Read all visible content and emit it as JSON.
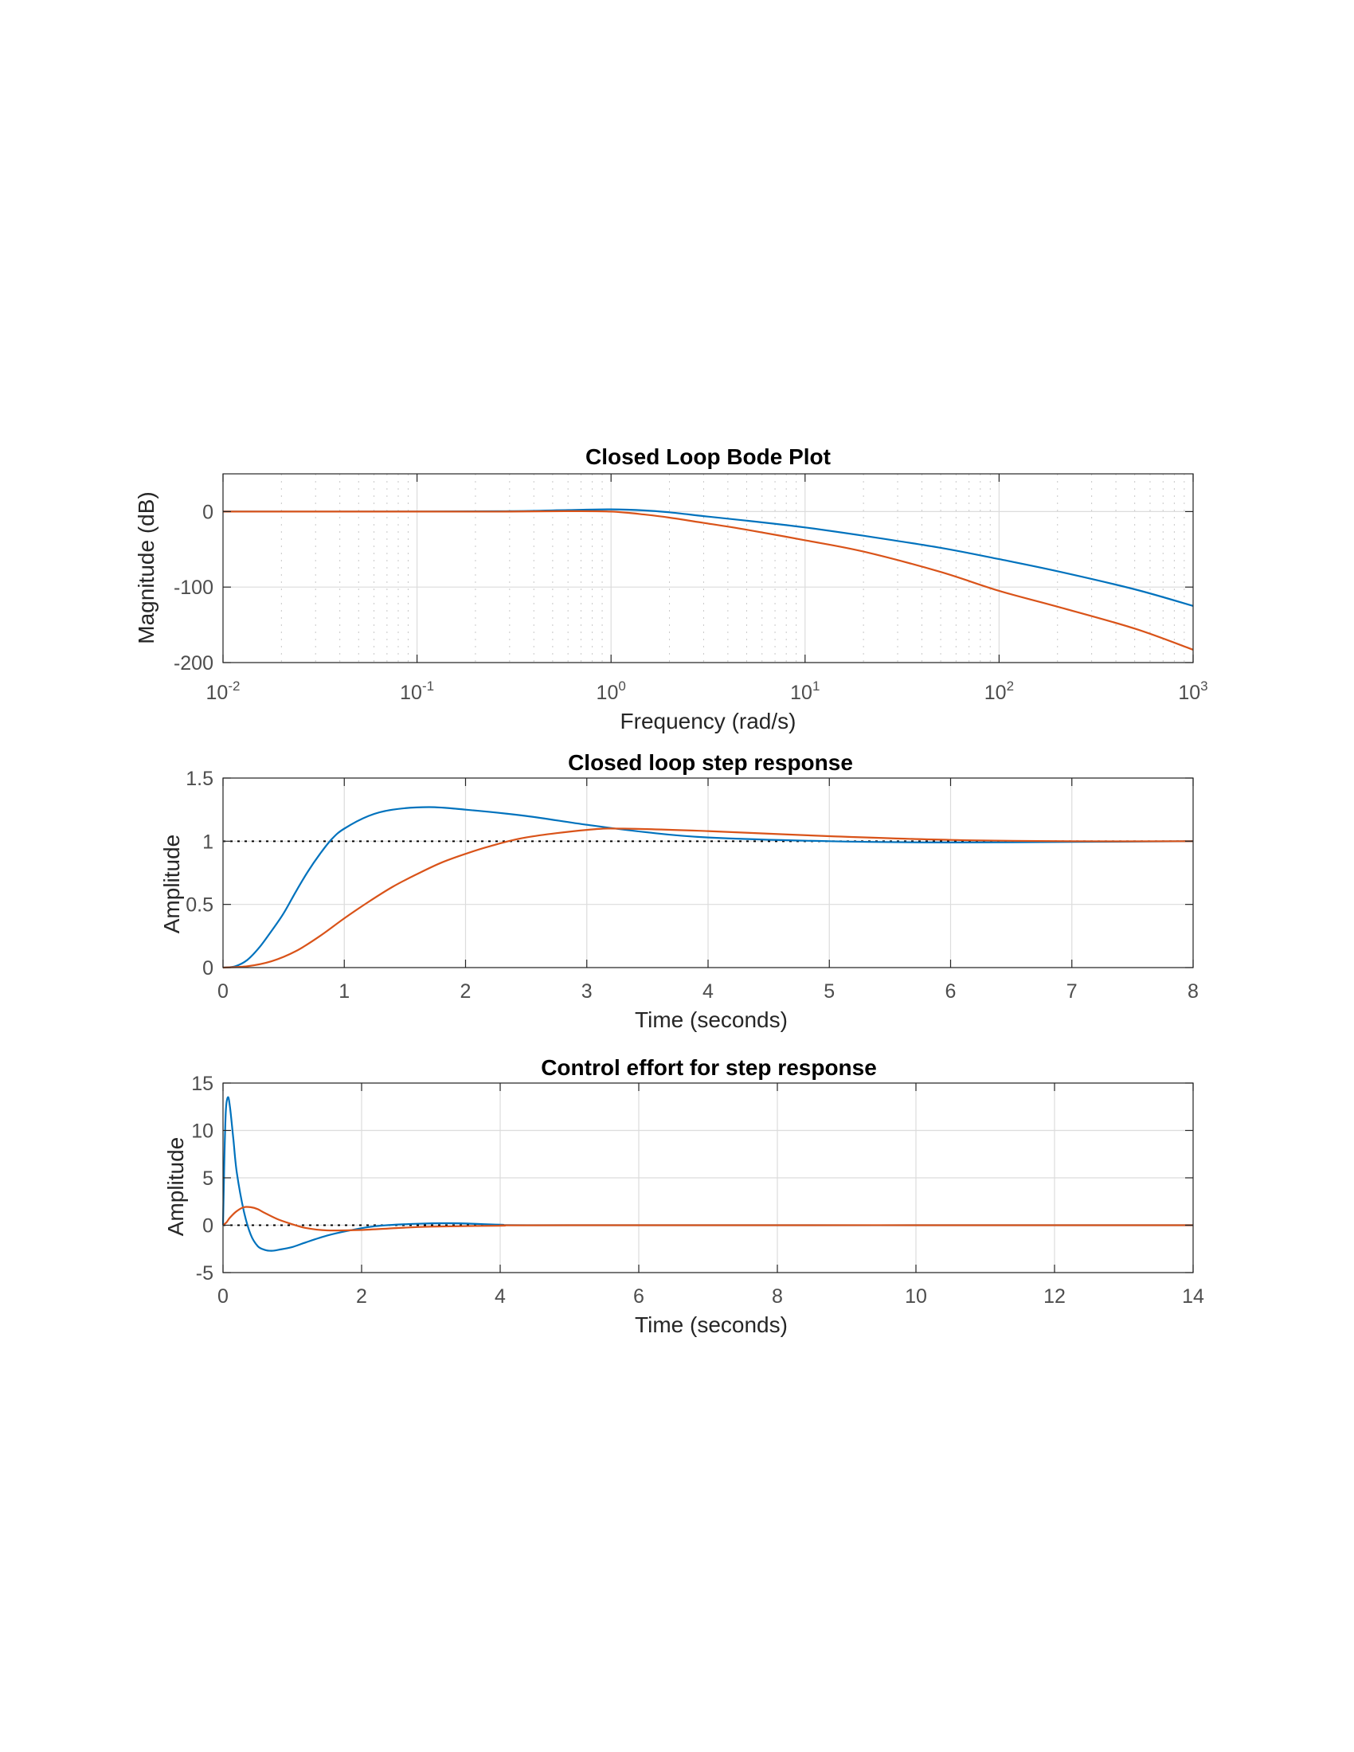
{
  "chart_data": [
    {
      "type": "line",
      "title": "Closed Loop Bode Plot",
      "xlabel": "Frequency  (rad/s)",
      "ylabel": "Magnitude (dB)",
      "xscale": "log",
      "xlim": [
        0.01,
        1000
      ],
      "ylim": [
        -200,
        50
      ],
      "grid": "on (major + minor)",
      "xticks": [
        {
          "base": "10",
          "exp": "-2",
          "value": 0.01
        },
        {
          "base": "10",
          "exp": "-1",
          "value": 0.1
        },
        {
          "base": "10",
          "exp": "0",
          "value": 1
        },
        {
          "base": "10",
          "exp": "1",
          "value": 10
        },
        {
          "base": "10",
          "exp": "2",
          "value": 100
        },
        {
          "base": "10",
          "exp": "3",
          "value": 1000
        }
      ],
      "yticks": [
        {
          "label": "0",
          "value": 0
        },
        {
          "label": "-100",
          "value": -100
        },
        {
          "label": "-200",
          "value": -200
        }
      ],
      "series": [
        {
          "color": "#0072BD",
          "points": [
            [
              0.01,
              0
            ],
            [
              0.1,
              0
            ],
            [
              0.3,
              0.5
            ],
            [
              0.6,
              2
            ],
            [
              1,
              3
            ],
            [
              1.5,
              1.5
            ],
            [
              2,
              -1
            ],
            [
              3,
              -6
            ],
            [
              5,
              -12
            ],
            [
              10,
              -21
            ],
            [
              20,
              -32
            ],
            [
              50,
              -48
            ],
            [
              100,
              -63
            ],
            [
              200,
              -79
            ],
            [
              500,
              -103
            ],
            [
              1000,
              -125
            ]
          ]
        },
        {
          "color": "#D95319",
          "points": [
            [
              0.01,
              0
            ],
            [
              0.1,
              0
            ],
            [
              0.3,
              0
            ],
            [
              0.6,
              0.5
            ],
            [
              1,
              0
            ],
            [
              1.5,
              -4
            ],
            [
              2,
              -8
            ],
            [
              3,
              -15
            ],
            [
              5,
              -24
            ],
            [
              10,
              -38
            ],
            [
              20,
              -53
            ],
            [
              50,
              -80
            ],
            [
              100,
              -105
            ],
            [
              200,
              -126
            ],
            [
              500,
              -155
            ],
            [
              1000,
              -183
            ]
          ]
        }
      ]
    },
    {
      "type": "line",
      "title": "Closed loop step response",
      "xlabel": "Time (seconds)",
      "ylabel": "Amplitude",
      "xlim": [
        0,
        8
      ],
      "ylim": [
        0,
        1.5
      ],
      "grid": "on",
      "reference_line": 1,
      "xticks": [
        {
          "label": "0",
          "value": 0
        },
        {
          "label": "1",
          "value": 1
        },
        {
          "label": "2",
          "value": 2
        },
        {
          "label": "3",
          "value": 3
        },
        {
          "label": "4",
          "value": 4
        },
        {
          "label": "5",
          "value": 5
        },
        {
          "label": "6",
          "value": 6
        },
        {
          "label": "7",
          "value": 7
        },
        {
          "label": "8",
          "value": 8
        }
      ],
      "yticks": [
        {
          "label": "0",
          "value": 0
        },
        {
          "label": "0.5",
          "value": 0.5
        },
        {
          "label": "1",
          "value": 1
        },
        {
          "label": "1.5",
          "value": 1.5
        }
      ],
      "series": [
        {
          "color": "#0072BD",
          "points": [
            [
              0,
              0
            ],
            [
              0.1,
              0.01
            ],
            [
              0.2,
              0.06
            ],
            [
              0.3,
              0.16
            ],
            [
              0.4,
              0.29
            ],
            [
              0.5,
              0.43
            ],
            [
              0.6,
              0.6
            ],
            [
              0.7,
              0.76
            ],
            [
              0.8,
              0.9
            ],
            [
              0.9,
              1.02
            ],
            [
              1.0,
              1.1
            ],
            [
              1.2,
              1.2
            ],
            [
              1.4,
              1.25
            ],
            [
              1.7,
              1.27
            ],
            [
              2.0,
              1.25
            ],
            [
              2.5,
              1.2
            ],
            [
              3.0,
              1.13
            ],
            [
              3.5,
              1.07
            ],
            [
              4.0,
              1.03
            ],
            [
              5.0,
              1.0
            ],
            [
              6.0,
              0.99
            ],
            [
              7.0,
              0.995
            ],
            [
              8.0,
              1.0
            ]
          ]
        },
        {
          "color": "#D95319",
          "points": [
            [
              0,
              0
            ],
            [
              0.2,
              0.01
            ],
            [
              0.4,
              0.05
            ],
            [
              0.6,
              0.13
            ],
            [
              0.8,
              0.25
            ],
            [
              1.0,
              0.39
            ],
            [
              1.2,
              0.52
            ],
            [
              1.4,
              0.64
            ],
            [
              1.6,
              0.74
            ],
            [
              1.8,
              0.83
            ],
            [
              2.0,
              0.9
            ],
            [
              2.2,
              0.96
            ],
            [
              2.5,
              1.03
            ],
            [
              3.0,
              1.09
            ],
            [
              3.3,
              1.1
            ],
            [
              4.0,
              1.08
            ],
            [
              5.0,
              1.04
            ],
            [
              6.0,
              1.01
            ],
            [
              7.0,
              1.0
            ],
            [
              8.0,
              1.0
            ]
          ]
        }
      ]
    },
    {
      "type": "line",
      "title": "Control effort for step response",
      "xlabel": "Time (seconds)",
      "ylabel": "Amplitude",
      "xlim": [
        0,
        14
      ],
      "ylim": [
        -5,
        15
      ],
      "grid": "on",
      "reference_line": 0,
      "xticks": [
        {
          "label": "0",
          "value": 0
        },
        {
          "label": "2",
          "value": 2
        },
        {
          "label": "4",
          "value": 4
        },
        {
          "label": "6",
          "value": 6
        },
        {
          "label": "8",
          "value": 8
        },
        {
          "label": "10",
          "value": 10
        },
        {
          "label": "12",
          "value": 12
        },
        {
          "label": "14",
          "value": 14
        }
      ],
      "yticks": [
        {
          "label": "-5",
          "value": -5
        },
        {
          "label": "0",
          "value": 0
        },
        {
          "label": "5",
          "value": 5
        },
        {
          "label": "10",
          "value": 10
        },
        {
          "label": "15",
          "value": 15
        }
      ],
      "series": [
        {
          "color": "#0072BD",
          "points": [
            [
              0,
              0
            ],
            [
              0.02,
              7
            ],
            [
              0.04,
              12
            ],
            [
              0.07,
              13.5
            ],
            [
              0.1,
              12.5
            ],
            [
              0.15,
              9
            ],
            [
              0.2,
              5.5
            ],
            [
              0.3,
              1.5
            ],
            [
              0.4,
              -1
            ],
            [
              0.5,
              -2.2
            ],
            [
              0.6,
              -2.6
            ],
            [
              0.7,
              -2.7
            ],
            [
              0.8,
              -2.6
            ],
            [
              1.0,
              -2.3
            ],
            [
              1.2,
              -1.8
            ],
            [
              1.5,
              -1.1
            ],
            [
              1.8,
              -0.6
            ],
            [
              2.2,
              -0.1
            ],
            [
              2.8,
              0.15
            ],
            [
              3.4,
              0.2
            ],
            [
              4.0,
              0.05
            ],
            [
              5.0,
              0.0
            ],
            [
              14.0,
              0.0
            ]
          ]
        },
        {
          "color": "#D95319",
          "points": [
            [
              0,
              0
            ],
            [
              0.05,
              0.3
            ],
            [
              0.1,
              0.8
            ],
            [
              0.2,
              1.5
            ],
            [
              0.3,
              1.9
            ],
            [
              0.4,
              1.9
            ],
            [
              0.5,
              1.7
            ],
            [
              0.6,
              1.3
            ],
            [
              0.8,
              0.6
            ],
            [
              1.0,
              0.1
            ],
            [
              1.2,
              -0.3
            ],
            [
              1.5,
              -0.55
            ],
            [
              2.0,
              -0.5
            ],
            [
              2.5,
              -0.3
            ],
            [
              3.0,
              -0.15
            ],
            [
              4.0,
              -0.05
            ],
            [
              5.0,
              0.0
            ],
            [
              14.0,
              0.0
            ]
          ]
        }
      ]
    }
  ]
}
